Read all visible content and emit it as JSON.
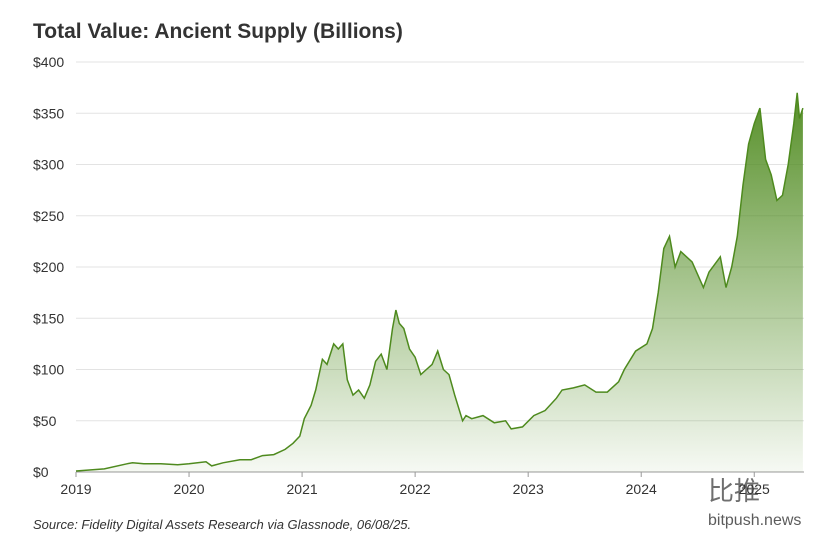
{
  "chart_data": {
    "type": "area",
    "title": "Total Value: Ancient Supply (Billions)",
    "source": "Source: Fidelity Digital Assets Research via Glassnode, 06/08/25.",
    "watermark": [
      "比推",
      "bitpush.news"
    ],
    "color": "#4e8a1e",
    "grid": true,
    "xlim": [
      2019,
      2025.44
    ],
    "xticks": [
      2019,
      2020,
      2021,
      2022,
      2023,
      2024,
      2025
    ],
    "ylim": [
      0,
      400
    ],
    "yticks": [
      {
        "value": 0,
        "label": "$0"
      },
      {
        "value": 50,
        "label": "$50"
      },
      {
        "value": 100,
        "label": "$100"
      },
      {
        "value": 150,
        "label": "$150"
      },
      {
        "value": 200,
        "label": "$200"
      },
      {
        "value": 250,
        "label": "$250"
      },
      {
        "value": 300,
        "label": "$300"
      },
      {
        "value": 350,
        "label": "$350"
      },
      {
        "value": 400,
        "label": "$400"
      }
    ],
    "x": [
      2019.0,
      2019.25,
      2019.45,
      2019.5,
      2019.6,
      2019.75,
      2019.9,
      2020.0,
      2020.15,
      2020.2,
      2020.3,
      2020.45,
      2020.55,
      2020.65,
      2020.75,
      2020.85,
      2020.92,
      2020.98,
      2021.02,
      2021.08,
      2021.12,
      2021.18,
      2021.22,
      2021.28,
      2021.32,
      2021.36,
      2021.4,
      2021.45,
      2021.5,
      2021.55,
      2021.6,
      2021.65,
      2021.7,
      2021.75,
      2021.8,
      2021.83,
      2021.86,
      2021.9,
      2021.95,
      2022.0,
      2022.05,
      2022.1,
      2022.15,
      2022.2,
      2022.25,
      2022.3,
      2022.35,
      2022.42,
      2022.45,
      2022.5,
      2022.6,
      2022.7,
      2022.8,
      2022.85,
      2022.95,
      2023.05,
      2023.15,
      2023.25,
      2023.3,
      2023.4,
      2023.5,
      2023.6,
      2023.7,
      2023.8,
      2023.85,
      2023.95,
      2024.05,
      2024.1,
      2024.15,
      2024.2,
      2024.25,
      2024.3,
      2024.35,
      2024.45,
      2024.55,
      2024.6,
      2024.7,
      2024.75,
      2024.8,
      2024.85,
      2024.9,
      2024.95,
      2025.0,
      2025.05,
      2025.1,
      2025.15,
      2025.2,
      2025.25,
      2025.3,
      2025.35,
      2025.38,
      2025.4,
      2025.43
    ],
    "values": [
      1,
      3,
      8,
      9,
      8,
      8,
      7,
      8,
      10,
      6,
      9,
      12,
      12,
      16,
      17,
      22,
      28,
      35,
      52,
      65,
      80,
      110,
      105,
      125,
      120,
      125,
      90,
      75,
      80,
      72,
      85,
      108,
      115,
      100,
      140,
      158,
      145,
      140,
      120,
      112,
      95,
      100,
      105,
      118,
      100,
      95,
      75,
      50,
      55,
      52,
      55,
      48,
      50,
      42,
      44,
      55,
      60,
      72,
      80,
      82,
      85,
      78,
      78,
      88,
      100,
      118,
      125,
      140,
      175,
      218,
      230,
      200,
      215,
      205,
      180,
      195,
      210,
      180,
      200,
      230,
      280,
      320,
      340,
      355,
      305,
      290,
      265,
      270,
      300,
      340,
      370,
      345,
      355
    ]
  }
}
